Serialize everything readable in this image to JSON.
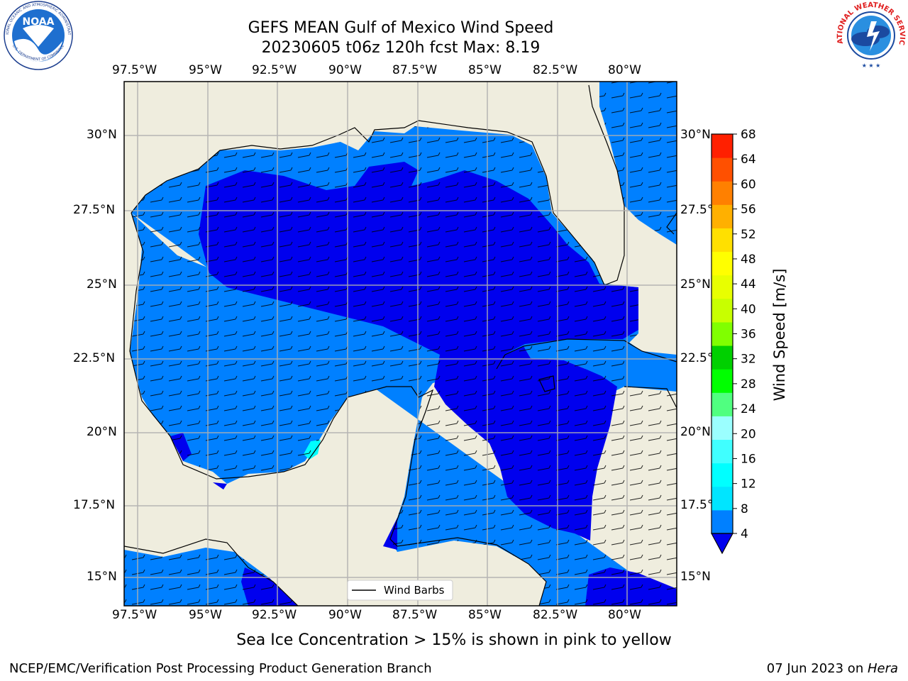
{
  "header": {
    "title_line1": "GEFS MEAN Gulf of Mexico Wind Speed",
    "title_line2": "20230605 t06z 120h fcst   Max: 8.19"
  },
  "logos": {
    "noaa_text": "NOAA",
    "noaa_ring_top": "NATIONAL OCEANIC AND ATMOSPHERIC ADMINISTRATION",
    "noaa_ring_bottom": "U.S. DEPARTMENT OF COMMERCE",
    "nws_ring": "NATIONAL WEATHER SERVICE"
  },
  "map": {
    "lon_labels": [
      "97.5°W",
      "95°W",
      "92.5°W",
      "90°W",
      "87.5°W",
      "85°W",
      "82.5°W",
      "80°W"
    ],
    "lon_values": [
      -97.5,
      -95,
      -92.5,
      -90,
      -87.5,
      -85,
      -82.5,
      -80
    ],
    "lat_labels": [
      "30°N",
      "27.5°N",
      "25°N",
      "22.5°N",
      "20°N",
      "17.5°N",
      "15°N"
    ],
    "lat_right_labels": [
      "30°N",
      "27.5°",
      "25°N",
      "22.5°",
      "20°N",
      "17.5°",
      "15°N"
    ],
    "lat_values": [
      30,
      27.5,
      25,
      22.5,
      20,
      17.5,
      15
    ],
    "lon_range": [
      -98,
      -78.2
    ],
    "lat_range": [
      14,
      31.7
    ],
    "legend_label": "Wind Barbs",
    "colors": {
      "land": "#efedde",
      "level_4_8": "#0080ff",
      "level_0_4": "#0000ee",
      "level_8_12": "#00ffff"
    }
  },
  "colorbar": {
    "label": "Wind Speed [m/s]",
    "ticks": [
      "68",
      "64",
      "60",
      "56",
      "52",
      "48",
      "44",
      "40",
      "36",
      "32",
      "28",
      "24",
      "20",
      "16",
      "12",
      "8",
      "4"
    ],
    "colors": [
      "#0080ff",
      "#00e5ff",
      "#00ffff",
      "#40ffff",
      "#9bffff",
      "#50ff80",
      "#00ff00",
      "#00d000",
      "#80ff00",
      "#c8ff00",
      "#e8ff00",
      "#ffff00",
      "#ffe000",
      "#ffb000",
      "#ff8000",
      "#ff5000",
      "#ff2000",
      "#ff0000"
    ]
  },
  "note": "Sea Ice Concentration > 15% is shown in pink to yellow",
  "footer": {
    "left": "NCEP/EMC/Verification Post Processing Product Generation Branch",
    "date": "07 Jun 2023 on ",
    "host": "Hera"
  }
}
